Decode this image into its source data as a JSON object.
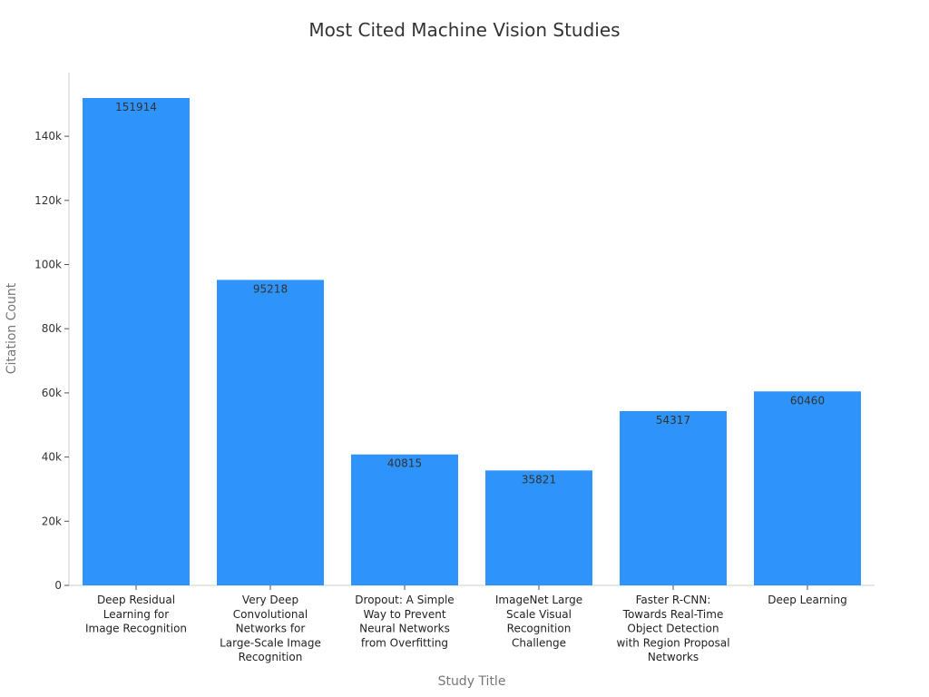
{
  "chart_data": {
    "type": "bar",
    "title": "Most Cited Machine Vision Studies",
    "xlabel": "Study Title",
    "ylabel": "Citation Count",
    "ylim": [
      0,
      160000
    ],
    "yticks": [
      0,
      20000,
      40000,
      60000,
      80000,
      100000,
      120000,
      140000
    ],
    "ytick_labels": [
      "0",
      "20k",
      "40k",
      "60k",
      "80k",
      "100k",
      "120k",
      "140k"
    ],
    "categories": [
      [
        "Deep Residual",
        "Learning for",
        "Image Recognition"
      ],
      [
        "Very Deep",
        "Convolutional",
        "Networks for",
        "Large-Scale Image",
        "Recognition"
      ],
      [
        "Dropout: A Simple",
        "Way to Prevent",
        "Neural Networks",
        "from Overfitting"
      ],
      [
        "ImageNet Large",
        "Scale Visual",
        "Recognition",
        "Challenge"
      ],
      [
        "Faster R-CNN:",
        "Towards Real-Time",
        "Object Detection",
        "with Region Proposal",
        "Networks"
      ],
      [
        "Deep Learning"
      ]
    ],
    "values": [
      151914,
      95218,
      40815,
      35821,
      54317,
      60460
    ],
    "data_labels": [
      "151914",
      "95218",
      "40815",
      "35821",
      "54317",
      "60460"
    ],
    "bar_color": "#2e93fa",
    "grid": false,
    "legend": "none"
  }
}
